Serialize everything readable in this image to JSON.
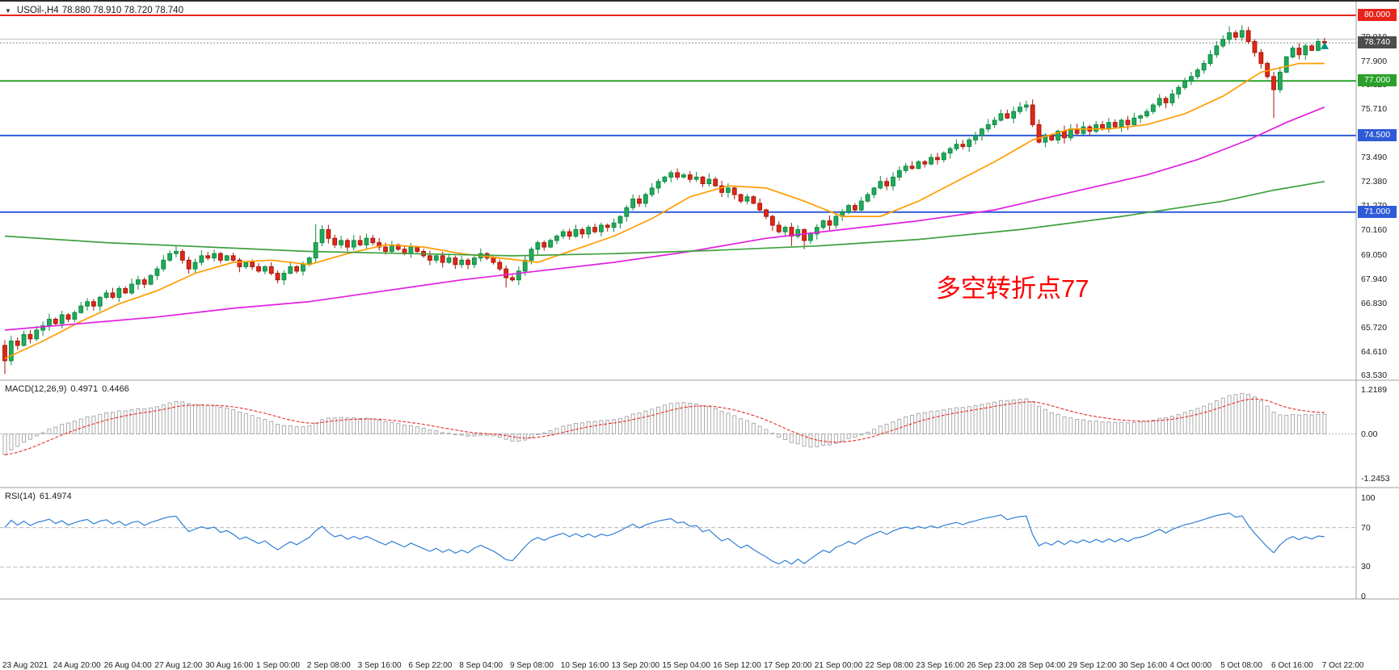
{
  "window": {
    "symbol_period": "USOil-,H4",
    "ohlc_text": "78.880 78.910 78.720 78.740"
  },
  "annotation": {
    "text": "多空转折点77",
    "color": "#fe0000"
  },
  "current_price": {
    "bid": 78.74,
    "ask": 78.91,
    "label": "78.740",
    "box_color": "#4d4d4d"
  },
  "marker": {
    "price": 78.6,
    "color": "#009184"
  },
  "hlines": [
    {
      "price": 80.0,
      "label": "80.000",
      "color": "#e8231a",
      "width": 2
    },
    {
      "price": 77.0,
      "label": "77.000",
      "color": "#2aa12a",
      "width": 2
    },
    {
      "price": 74.5,
      "label": "74.500",
      "color": "#2f5bd7",
      "width": 2
    },
    {
      "price": 71.0,
      "label": "71.000",
      "color": "#2f5bd7",
      "width": 2
    }
  ],
  "price_axis": {
    "ticks": [
      "79.010",
      "77.900",
      "76.820",
      "75.710",
      "74.600",
      "73.490",
      "72.380",
      "71.270",
      "70.160",
      "69.050",
      "67.940",
      "66.830",
      "65.720",
      "64.610",
      "63.530"
    ]
  },
  "chart_data": {
    "type": "candlestick",
    "title": "USOil-,H4",
    "symbol": "USOil",
    "timeframe": "H4",
    "y_range": [
      63.53,
      80.0
    ],
    "x_label_every_n_candles": 8,
    "x_labels": [
      "23 Aug 2021",
      "24 Aug 20:00",
      "26 Aug 04:00",
      "27 Aug 12:00",
      "30 Aug 16:00",
      "1 Sep 00:00",
      "2 Sep 08:00",
      "3 Sep 16:00",
      "6 Sep 22:00",
      "8 Sep 04:00",
      "9 Sep 08:00",
      "10 Sep 16:00",
      "13 Sep 20:00",
      "15 Sep 04:00",
      "16 Sep 12:00",
      "17 Sep 20:00",
      "21 Sep 00:00",
      "22 Sep 08:00",
      "23 Sep 16:00",
      "26 Sep 23:00",
      "28 Sep 04:00",
      "29 Sep 12:00",
      "30 Sep 16:00",
      "4 Oct 00:00",
      "5 Oct 08:00",
      "6 Oct 16:00",
      "7 Oct 22:00"
    ],
    "first_open": 64.9,
    "closes": [
      64.2,
      65.1,
      64.9,
      65.4,
      65.2,
      65.6,
      65.8,
      66.1,
      65.9,
      66.3,
      66.1,
      66.4,
      66.7,
      66.9,
      66.7,
      67.1,
      67.3,
      67.1,
      67.5,
      67.3,
      67.7,
      67.9,
      67.7,
      68.1,
      68.4,
      68.8,
      69.1,
      69.2,
      68.8,
      68.4,
      68.7,
      69.0,
      68.9,
      69.1,
      68.8,
      69.0,
      68.8,
      68.5,
      68.7,
      68.5,
      68.3,
      68.5,
      68.2,
      67.9,
      68.2,
      68.5,
      68.3,
      68.6,
      68.9,
      69.6,
      70.2,
      69.8,
      69.5,
      69.7,
      69.4,
      69.7,
      69.5,
      69.8,
      69.6,
      69.4,
      69.2,
      69.5,
      69.3,
      69.1,
      69.4,
      69.2,
      69.0,
      68.8,
      69.0,
      68.7,
      68.9,
      68.6,
      68.8,
      68.6,
      68.9,
      69.1,
      68.9,
      68.7,
      68.4,
      68.0,
      67.9,
      68.3,
      68.8,
      69.3,
      69.6,
      69.4,
      69.7,
      69.9,
      70.1,
      69.9,
      70.2,
      70.0,
      70.3,
      70.1,
      70.4,
      70.3,
      70.5,
      70.8,
      71.2,
      71.6,
      71.4,
      71.8,
      72.1,
      72.4,
      72.6,
      72.8,
      72.6,
      72.7,
      72.5,
      72.6,
      72.3,
      72.5,
      72.2,
      71.9,
      72.1,
      71.8,
      71.5,
      71.7,
      71.4,
      71.1,
      70.8,
      70.4,
      70.1,
      70.3,
      69.9,
      70.2,
      69.7,
      70.0,
      70.3,
      70.6,
      70.4,
      70.8,
      71.0,
      71.3,
      71.1,
      71.5,
      71.8,
      72.1,
      72.4,
      72.2,
      72.6,
      72.9,
      73.1,
      73.0,
      73.3,
      73.2,
      73.5,
      73.4,
      73.7,
      73.9,
      74.1,
      74.0,
      74.3,
      74.5,
      74.8,
      75.0,
      75.2,
      75.5,
      75.3,
      75.6,
      75.8,
      75.9,
      75.0,
      74.2,
      74.5,
      74.3,
      74.7,
      74.4,
      74.8,
      74.6,
      74.9,
      74.7,
      75.0,
      74.8,
      75.1,
      74.9,
      75.2,
      75.0,
      75.3,
      75.4,
      75.6,
      75.9,
      76.2,
      76.0,
      76.4,
      76.7,
      77.0,
      77.2,
      77.5,
      77.8,
      78.2,
      78.6,
      78.9,
      79.2,
      79.0,
      79.3,
      78.8,
      78.3,
      77.8,
      77.2,
      76.6,
      77.4,
      78.1,
      78.5,
      78.2,
      78.6,
      78.4,
      78.8,
      78.74
    ],
    "overrides": {
      "0": {
        "low": 63.6
      },
      "49": {
        "high": 70.45
      },
      "50": {
        "high": 70.4
      },
      "79": {
        "low": 67.55
      },
      "124": {
        "low": 69.45
      },
      "126": {
        "low": 69.3
      },
      "161": {
        "high": 76.1
      },
      "193": {
        "high": 79.5
      },
      "195": {
        "high": 79.55
      },
      "200": {
        "low": 75.3
      }
    },
    "moving_averages": [
      {
        "name": "fast-ma-line",
        "color": "#ff9d00",
        "points": [
          [
            0,
            64.3
          ],
          [
            6,
            65.1
          ],
          [
            12,
            66.0
          ],
          [
            18,
            66.8
          ],
          [
            24,
            67.4
          ],
          [
            30,
            68.2
          ],
          [
            36,
            68.7
          ],
          [
            42,
            68.8
          ],
          [
            48,
            68.6
          ],
          [
            54,
            69.1
          ],
          [
            60,
            69.5
          ],
          [
            66,
            69.4
          ],
          [
            72,
            69.1
          ],
          [
            78,
            68.9
          ],
          [
            84,
            68.7
          ],
          [
            90,
            69.3
          ],
          [
            96,
            69.9
          ],
          [
            102,
            70.7
          ],
          [
            108,
            71.7
          ],
          [
            114,
            72.2
          ],
          [
            120,
            72.1
          ],
          [
            126,
            71.5
          ],
          [
            132,
            70.8
          ],
          [
            138,
            70.8
          ],
          [
            144,
            71.5
          ],
          [
            150,
            72.4
          ],
          [
            156,
            73.3
          ],
          [
            162,
            74.3
          ],
          [
            168,
            74.8
          ],
          [
            174,
            74.8
          ],
          [
            180,
            75.0
          ],
          [
            186,
            75.5
          ],
          [
            192,
            76.3
          ],
          [
            198,
            77.4
          ],
          [
            204,
            77.8
          ],
          [
            208,
            77.8
          ]
        ]
      },
      {
        "name": "mid-ma-line",
        "color": "#e020e0",
        "points": [
          [
            0,
            65.6
          ],
          [
            12,
            65.9
          ],
          [
            24,
            66.2
          ],
          [
            36,
            66.6
          ],
          [
            48,
            66.9
          ],
          [
            60,
            67.4
          ],
          [
            72,
            67.9
          ],
          [
            84,
            68.3
          ],
          [
            96,
            68.7
          ],
          [
            108,
            69.2
          ],
          [
            120,
            69.8
          ],
          [
            132,
            70.2
          ],
          [
            144,
            70.6
          ],
          [
            156,
            71.1
          ],
          [
            168,
            71.9
          ],
          [
            180,
            72.7
          ],
          [
            188,
            73.4
          ],
          [
            196,
            74.3
          ],
          [
            202,
            75.1
          ],
          [
            208,
            75.8
          ]
        ]
      },
      {
        "name": "slow-ma-line",
        "color": "#3fa03f",
        "points": [
          [
            0,
            69.9
          ],
          [
            16,
            69.6
          ],
          [
            32,
            69.4
          ],
          [
            48,
            69.2
          ],
          [
            64,
            69.1
          ],
          [
            80,
            69.0
          ],
          [
            96,
            69.1
          ],
          [
            112,
            69.25
          ],
          [
            128,
            69.45
          ],
          [
            144,
            69.75
          ],
          [
            160,
            70.2
          ],
          [
            176,
            70.8
          ],
          [
            192,
            71.5
          ],
          [
            200,
            72.0
          ],
          [
            208,
            72.4
          ]
        ]
      }
    ],
    "macd": {
      "label": "MACD(12,26,9)",
      "value": "0.4971",
      "signal_value": "0.4466",
      "params": [
        12,
        26,
        9
      ],
      "scale_ticks": [
        "1.2189",
        "0.00",
        "-1.2453"
      ],
      "scale_values": [
        1.2189,
        0,
        -1.2453
      ],
      "signal_color": "#e53028",
      "histogram_color": "#ababab"
    },
    "rsi": {
      "label": "RSI(14)",
      "value": "61.4974",
      "period": 14,
      "levels": [
        "100",
        "70",
        "30",
        "0"
      ],
      "level_values": [
        100,
        70,
        30,
        0
      ],
      "dashed_levels": [
        70,
        30
      ],
      "color": "#2f7fd6"
    }
  }
}
